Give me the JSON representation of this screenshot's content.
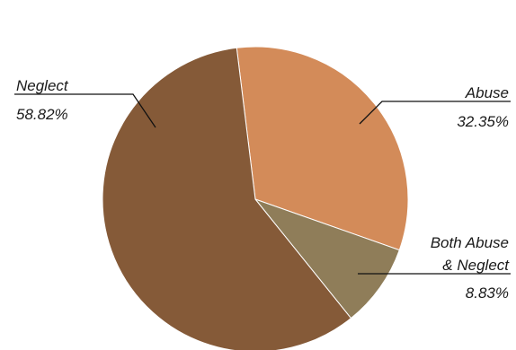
{
  "chart_data": {
    "type": "pie",
    "title": "",
    "slices": [
      {
        "label": "Abuse",
        "value": 32.35,
        "value_label": "32.35%",
        "color": "#D38B59"
      },
      {
        "label": "Both Abuse & Neglect",
        "label_lines": [
          "Both Abuse",
          "& Neglect"
        ],
        "value": 8.83,
        "value_label": "8.83%",
        "color": "#8F7D59"
      },
      {
        "label": "Neglect",
        "value": 58.82,
        "value_label": "58.82%",
        "color": "#855A38"
      }
    ],
    "legend": "none",
    "labels": "outside with leader lines"
  }
}
